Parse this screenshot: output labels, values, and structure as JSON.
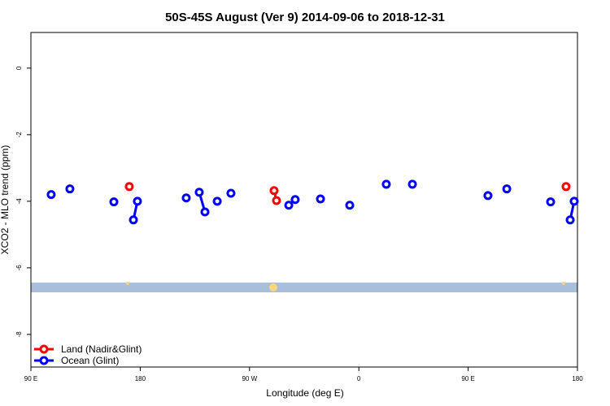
{
  "chart_data": {
    "type": "line",
    "title": "50S-45S August (Ver 9)   2014-09-06 to 2018-12-31",
    "x_label": "Longitude (deg E)",
    "y_label": "XCO2 - MLO trend (ppm)",
    "xlim": [
      90,
      540
    ],
    "xticks": [
      {
        "value": 90,
        "label": "90 E"
      },
      180,
      {
        "value": 270,
        "label": "90 W"
      },
      {
        "value": 360,
        "label": "0"
      },
      {
        "value": 450,
        "label": "90 E"
      },
      {
        "value": 540,
        "label": "180"
      }
    ],
    "ylim": [
      -8.98,
      1.07
    ],
    "yticks": [
      0,
      -2,
      -4,
      -6,
      -8
    ],
    "legend": "bottom-left",
    "series": [
      {
        "name": "Land (Nadir&Glint)",
        "color": "#ff0000",
        "x": [
          171.0,
          null,
          290.2,
          292.2,
          null,
          530.6
        ],
        "values": [
          -3.56,
          null,
          -3.68,
          -3.98,
          null,
          -3.56
        ]
      },
      {
        "name": "Ocean (Glint)",
        "color": "#0000ff",
        "x": [
          106.7,
          null,
          122.1,
          null,
          158.3,
          null,
          174.4,
          177.7,
          null,
          217.9,
          null,
          228.6,
          233.3,
          null,
          243.4,
          null,
          254.7,
          null,
          302.3,
          null,
          307.6,
          null,
          328.4,
          null,
          352.5,
          null,
          382.6,
          null,
          404.1,
          null,
          466.3,
          null,
          481.8,
          null,
          517.9,
          null,
          534.0,
          537.3
        ],
        "values": [
          -3.8,
          null,
          -3.63,
          null,
          -4.02,
          null,
          -4.56,
          -4.0,
          null,
          -3.9,
          null,
          -3.73,
          -4.32,
          null,
          -4.0,
          null,
          -3.76,
          null,
          -4.12,
          null,
          -3.95,
          null,
          -3.93,
          null,
          -4.12,
          null,
          -3.49,
          null,
          -3.49,
          null,
          -3.83,
          null,
          -3.63,
          null,
          -4.02,
          null,
          -4.56,
          -4.0
        ]
      }
    ]
  }
}
